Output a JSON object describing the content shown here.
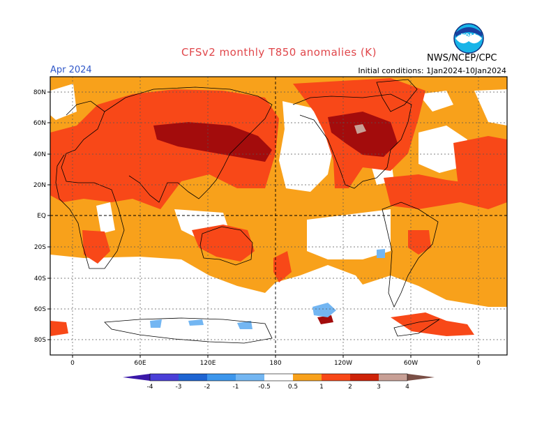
{
  "header": {
    "title": "CFSv2 monthly T850 anomalies (K)",
    "valid_month": "Apr 2024",
    "initial_conditions": "Initial conditions: 1Jan2024-10Jan2024",
    "agency": "NWS/NCEP/CPC",
    "logo_icon": "noaa-logo-icon",
    "logo_text": "NOAA"
  },
  "map": {
    "lat_labels": [
      "80N",
      "60N",
      "40N",
      "20N",
      "EQ",
      "20S",
      "40S",
      "60S",
      "80S"
    ],
    "lon_labels": [
      "0",
      "60E",
      "120E",
      "180",
      "120W",
      "60W",
      "0"
    ],
    "background_color": "#f8a11b"
  },
  "colorbar": {
    "labels": [
      "-4",
      "-3",
      "-2",
      "-1",
      "-0.5",
      "0.5",
      "1",
      "2",
      "3",
      "4"
    ],
    "colors": [
      "#3a18a8",
      "#4a3fd8",
      "#1e64d2",
      "#3c96ec",
      "#73b6f2",
      "#ffffff",
      "#f8a11b",
      "#f84818",
      "#ce2208",
      "#9c0c0c",
      "#c8a096",
      "#7a4f46"
    ]
  }
}
